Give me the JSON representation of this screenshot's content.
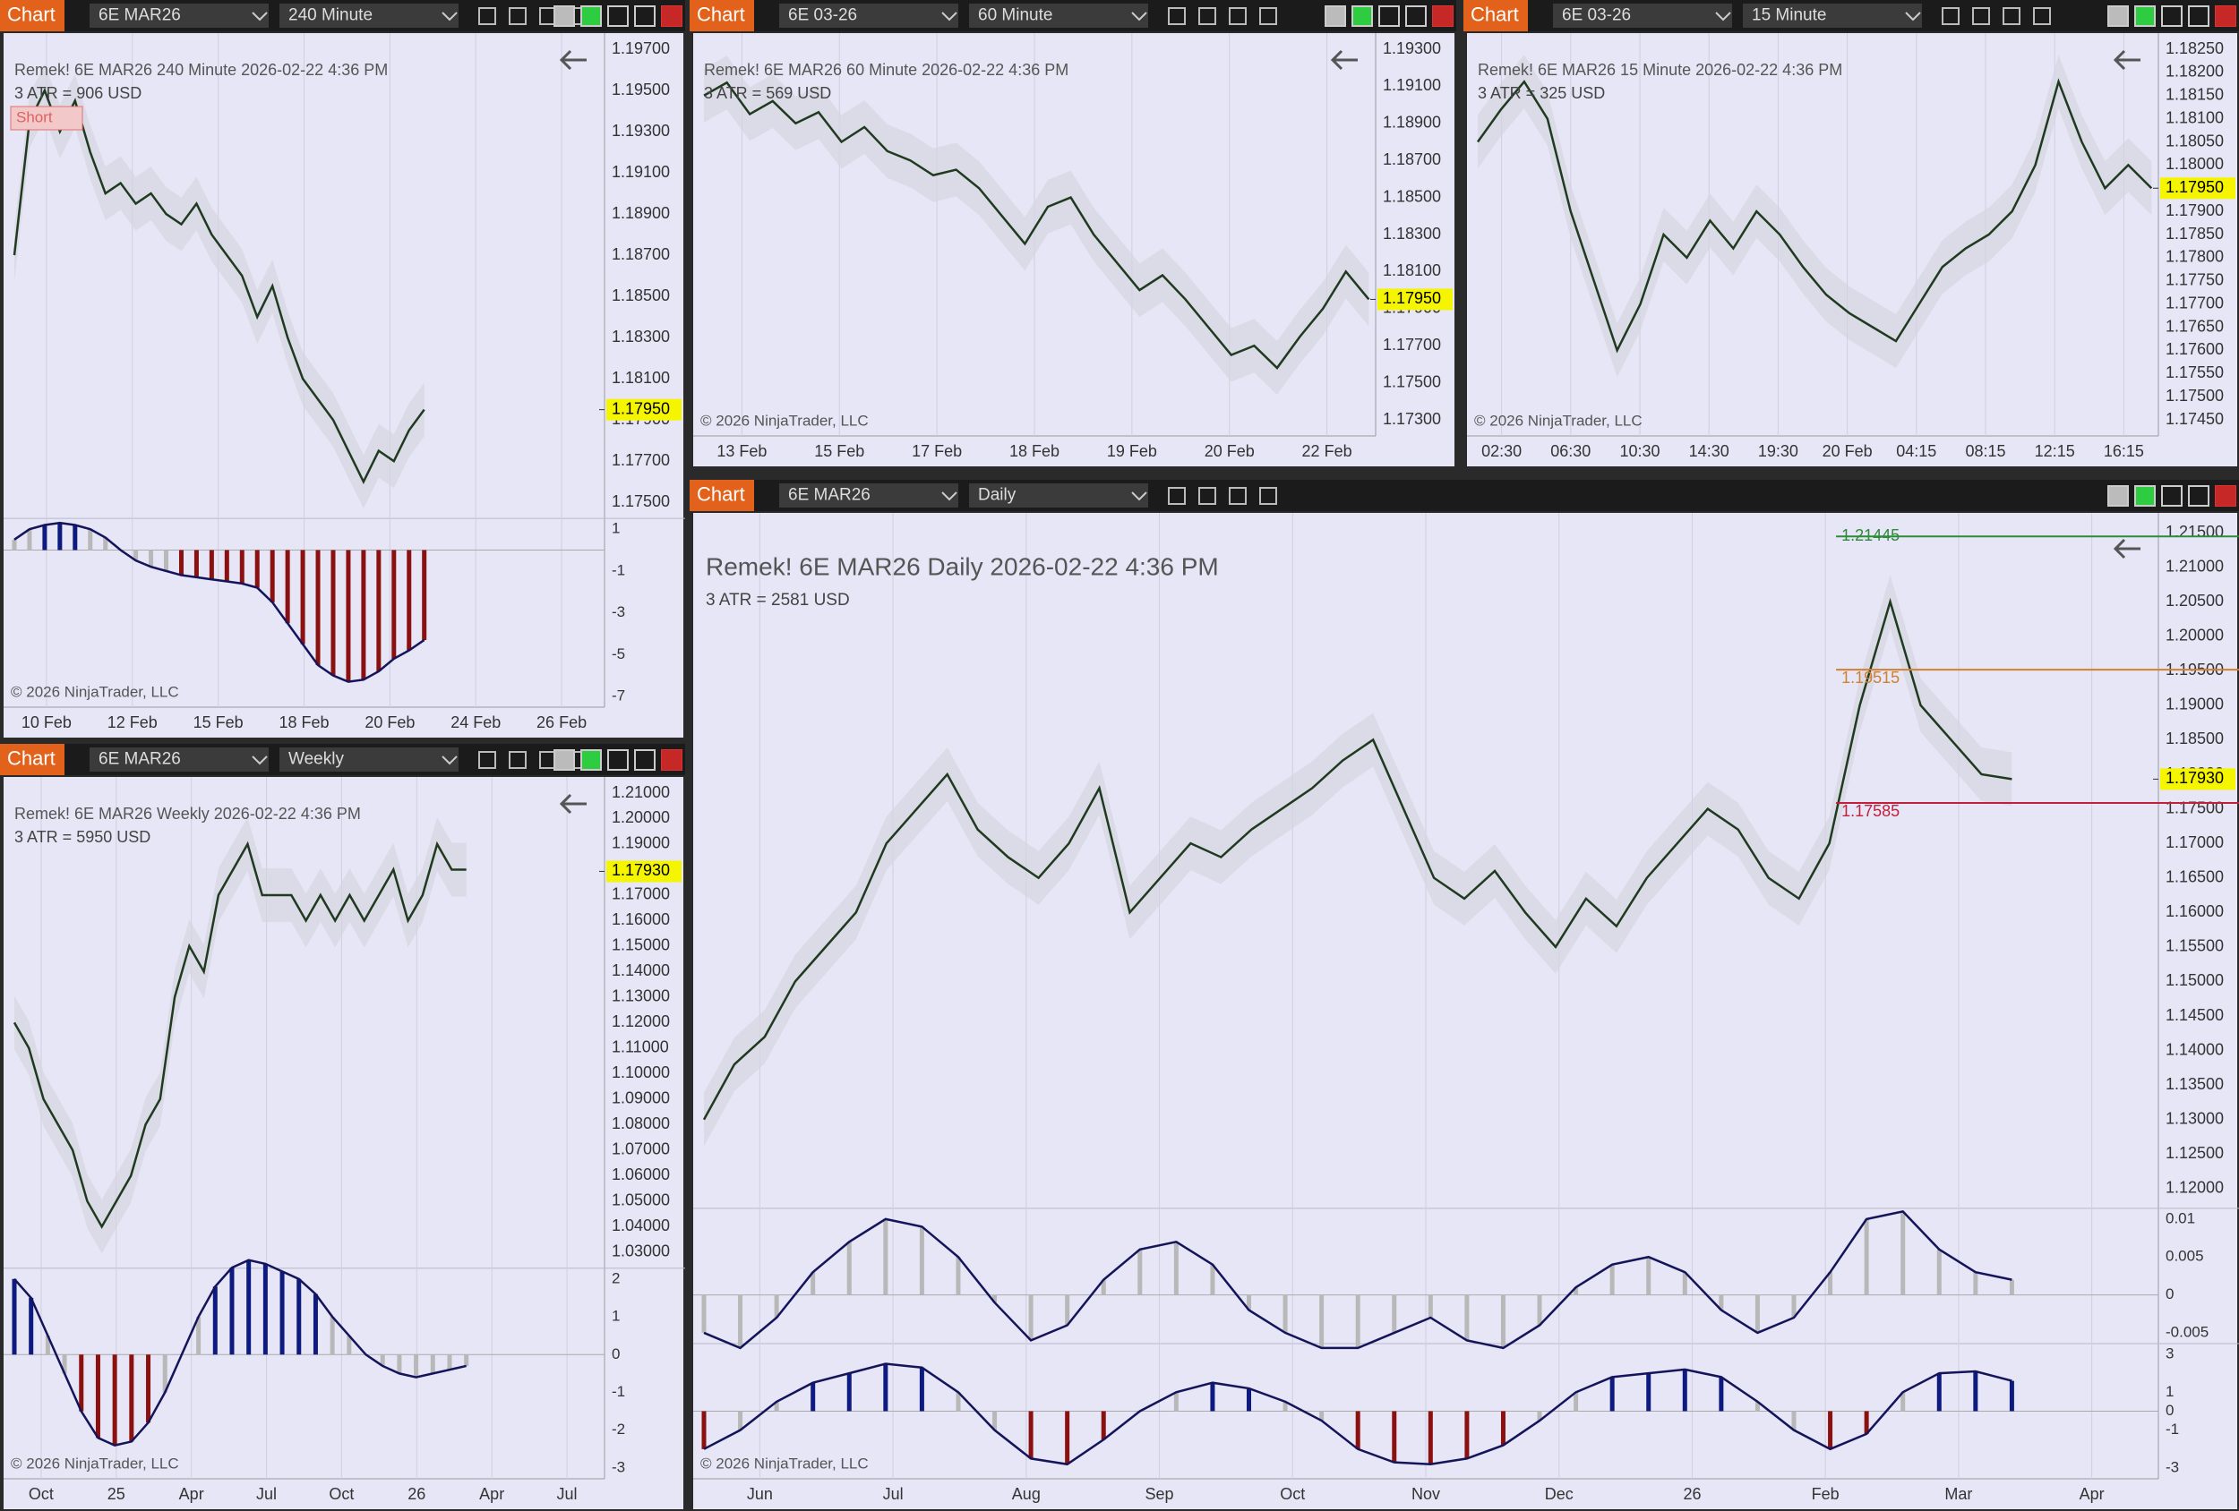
{
  "panels": [
    {
      "tab": "Chart",
      "instrument": "6E MAR26",
      "timeframe": "240 Minute",
      "title": "Remek!  6E MAR26  240 Minute  2026-02-22 4:36 PM",
      "atr": "3 ATR = 906 USD",
      "badge": "Short",
      "price_ticks": [
        "1.19700",
        "1.19500",
        "1.19300",
        "1.19100",
        "1.18900",
        "1.18700",
        "1.18500",
        "1.18300",
        "1.18100",
        "1.17900",
        "1.17700",
        "1.17500"
      ],
      "last_price": "1.17950",
      "closes": [
        1.187,
        1.1935,
        1.195,
        1.193,
        1.1945,
        1.192,
        1.19,
        1.1905,
        1.1895,
        1.19,
        1.189,
        1.1885,
        1.1895,
        1.188,
        1.187,
        1.186,
        1.184,
        1.1855,
        1.183,
        1.181,
        1.18,
        1.179,
        1.1775,
        1.176,
        1.1775,
        1.177,
        1.1785,
        1.1795
      ],
      "indicators": [
        {
          "ticks": [
            "1",
            "-1",
            "-3",
            "-5",
            "-7"
          ],
          "values": [
            0.5,
            1,
            1.2,
            1.3,
            1.2,
            1,
            0.6,
            0,
            -0.5,
            -0.8,
            -1,
            -1.2,
            -1.3,
            -1.4,
            -1.5,
            -1.6,
            -1.8,
            -2.5,
            -3.5,
            -4.5,
            -5.5,
            -6,
            -6.3,
            -6.2,
            -5.8,
            -5.2,
            -4.8,
            -4.3
          ]
        }
      ],
      "time_labels": [
        "10 Feb",
        "12 Feb",
        "15 Feb",
        "18 Feb",
        "20 Feb",
        "24 Feb",
        "26 Feb"
      ],
      "copyright": "© 2026 NinjaTrader, LLC"
    },
    {
      "tab": "Chart",
      "instrument": "6E 03-26",
      "timeframe": "60 Minute",
      "title": "Remek!  6E MAR26  60 Minute  2026-02-22 4:36 PM",
      "atr": "3 ATR = 569 USD",
      "price_ticks": [
        "1.19300",
        "1.19100",
        "1.18900",
        "1.18700",
        "1.18500",
        "1.18300",
        "1.18100",
        "1.17900",
        "1.17700",
        "1.17500",
        "1.17300"
      ],
      "last_price": "1.17950",
      "closes": [
        1.1905,
        1.1912,
        1.1895,
        1.1902,
        1.189,
        1.1896,
        1.188,
        1.1888,
        1.1875,
        1.187,
        1.1862,
        1.1865,
        1.1855,
        1.184,
        1.1825,
        1.1845,
        1.185,
        1.183,
        1.1815,
        1.18,
        1.1808,
        1.1795,
        1.178,
        1.1765,
        1.177,
        1.1758,
        1.1775,
        1.179,
        1.181,
        1.1795
      ],
      "indicators": [],
      "time_labels": [
        "13 Feb",
        "15 Feb",
        "17 Feb",
        "18 Feb",
        "19 Feb",
        "20 Feb",
        "22 Feb"
      ],
      "copyright": "© 2026 NinjaTrader, LLC"
    },
    {
      "tab": "Chart",
      "instrument": "6E 03-26",
      "timeframe": "15 Minute",
      "title": "Remek!  6E MAR26  15 Minute  2026-02-22 4:36 PM",
      "atr": "3 ATR = 325 USD",
      "price_ticks": [
        "1.18250",
        "1.18200",
        "1.18150",
        "1.18100",
        "1.18050",
        "1.18000",
        "1.17950",
        "1.17900",
        "1.17850",
        "1.17800",
        "1.17750",
        "1.17700",
        "1.17650",
        "1.17600",
        "1.17550",
        "1.17500",
        "1.17450"
      ],
      "last_price": "1.17950",
      "closes": [
        1.1805,
        1.1812,
        1.1818,
        1.181,
        1.179,
        1.1775,
        1.176,
        1.177,
        1.1785,
        1.178,
        1.1788,
        1.1782,
        1.179,
        1.1785,
        1.1778,
        1.1772,
        1.1768,
        1.1765,
        1.1762,
        1.177,
        1.1778,
        1.1782,
        1.1785,
        1.179,
        1.18,
        1.1818,
        1.1805,
        1.1795,
        1.18,
        1.1795
      ],
      "indicators": [],
      "time_labels": [
        "02:30",
        "06:30",
        "10:30",
        "14:30",
        "19:30",
        "20 Feb",
        "04:15",
        "08:15",
        "12:15",
        "16:15"
      ],
      "copyright": "© 2026 NinjaTrader, LLC"
    },
    {
      "tab": "Chart",
      "instrument": "6E MAR26",
      "timeframe": "Weekly",
      "title": "Remek!  6E MAR26  Weekly  2026-02-22 4:36 PM",
      "atr": "3 ATR = 5950 USD",
      "price_ticks": [
        "1.21000",
        "1.20000",
        "1.19000",
        "1.18000",
        "1.17000",
        "1.16000",
        "1.15000",
        "1.14000",
        "1.13000",
        "1.12000",
        "1.11000",
        "1.10000",
        "1.09000",
        "1.08000",
        "1.07000",
        "1.06000",
        "1.05000",
        "1.04000",
        "1.03000"
      ],
      "last_price": "1.17930",
      "closes": [
        1.12,
        1.11,
        1.09,
        1.08,
        1.07,
        1.05,
        1.04,
        1.05,
        1.06,
        1.08,
        1.09,
        1.13,
        1.15,
        1.14,
        1.17,
        1.18,
        1.19,
        1.17,
        1.17,
        1.17,
        1.16,
        1.17,
        1.16,
        1.17,
        1.16,
        1.17,
        1.18,
        1.16,
        1.17,
        1.19,
        1.18,
        1.18
      ],
      "indicators": [
        {
          "ticks": [
            "2",
            "1",
            "0",
            "-1",
            "-2",
            "-3"
          ],
          "values": [
            2,
            1.5,
            0.5,
            -0.5,
            -1.5,
            -2.2,
            -2.4,
            -2.3,
            -1.8,
            -1,
            0,
            1,
            1.8,
            2.3,
            2.5,
            2.4,
            2.2,
            2,
            1.6,
            1,
            0.5,
            0,
            -0.3,
            -0.5,
            -0.6,
            -0.5,
            -0.4,
            -0.3
          ]
        }
      ],
      "time_labels": [
        "Oct",
        "25",
        "Apr",
        "Jul",
        "Oct",
        "26",
        "Apr",
        "Jul"
      ],
      "copyright": "© 2026 NinjaTrader, LLC"
    },
    {
      "tab": "Chart",
      "instrument": "6E MAR26",
      "timeframe": "Daily",
      "title": "Remek!  6E MAR26  Daily  2026-02-22 4:36 PM",
      "atr": "3 ATR = 2581 USD",
      "price_ticks": [
        "1.21500",
        "1.21000",
        "1.20500",
        "1.20000",
        "1.19500",
        "1.19000",
        "1.18500",
        "1.18000",
        "1.17500",
        "1.17000",
        "1.16500",
        "1.16000",
        "1.15500",
        "1.15000",
        "1.14500",
        "1.14000",
        "1.13500",
        "1.13000",
        "1.12500",
        "1.12000"
      ],
      "last_price": "1.17930",
      "levels": [
        "1.21445",
        "1.19515",
        "1.17585"
      ],
      "closes": [
        1.13,
        1.138,
        1.142,
        1.15,
        1.155,
        1.16,
        1.17,
        1.175,
        1.18,
        1.172,
        1.168,
        1.165,
        1.17,
        1.178,
        1.16,
        1.165,
        1.17,
        1.168,
        1.172,
        1.175,
        1.178,
        1.182,
        1.185,
        1.175,
        1.165,
        1.162,
        1.166,
        1.16,
        1.155,
        1.162,
        1.158,
        1.165,
        1.17,
        1.175,
        1.172,
        1.165,
        1.162,
        1.17,
        1.19,
        1.205,
        1.19,
        1.185,
        1.18,
        1.1793
      ],
      "indicators": [
        {
          "ticks": [
            "0.01",
            "0.005",
            "0",
            "-0.005"
          ],
          "values": [
            -0.005,
            -0.007,
            -0.003,
            0.003,
            0.007,
            0.01,
            0.009,
            0.005,
            -0.001,
            -0.006,
            -0.004,
            0.002,
            0.006,
            0.007,
            0.004,
            -0.002,
            -0.005,
            -0.007,
            -0.007,
            -0.005,
            -0.003,
            -0.006,
            -0.007,
            -0.004,
            0.001,
            0.004,
            0.005,
            0.003,
            -0.002,
            -0.005,
            -0.003,
            0.003,
            0.01,
            0.011,
            0.006,
            0.003,
            0.002
          ]
        },
        {
          "ticks": [
            "3",
            "1",
            "0",
            "-1",
            "-3"
          ],
          "values": [
            -2,
            -1,
            0.5,
            1.5,
            2,
            2.5,
            2.3,
            1,
            -1,
            -2.5,
            -2.8,
            -1.5,
            0,
            1,
            1.5,
            1.2,
            0.5,
            -0.5,
            -2,
            -2.7,
            -2.8,
            -2.5,
            -1.8,
            -0.5,
            1,
            1.8,
            2,
            2.2,
            1.8,
            0.5,
            -1,
            -2,
            -1.2,
            1,
            2,
            2.1,
            1.6
          ]
        }
      ],
      "time_labels": [
        "Jun",
        "Jul",
        "Aug",
        "Sep",
        "Oct",
        "Nov",
        "Dec",
        "26",
        "Feb",
        "Mar",
        "Apr"
      ],
      "copyright": "© 2026 NinjaTrader, LLC"
    }
  ]
}
